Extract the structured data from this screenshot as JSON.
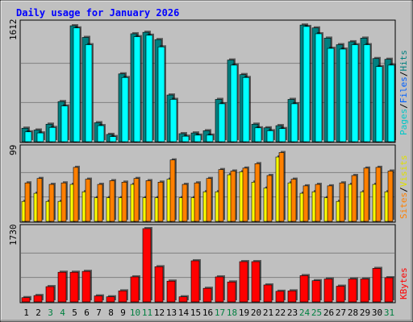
{
  "title": "Daily usage for January 2026",
  "colors": {
    "background": "#c0c0c0",
    "title": "#0000ff",
    "hits": "#00ffff",
    "hits_dark": "#008080",
    "files": "#0080ff",
    "files_dark": "#0060a0",
    "pages": "#00ffff",
    "visits": "#ffff00",
    "sites": "#ff8000",
    "kbytes": "#ff0000",
    "weekend_day": "#008040",
    "weekday_day": "#000000"
  },
  "chart_data": [
    {
      "type": "bar",
      "title": "Daily usage for January 2026",
      "panel": "top",
      "ymax_label": "1612",
      "ylim": [
        0,
        1612
      ],
      "grid": true,
      "legend_position": "right-vertical",
      "legend": [
        {
          "name": "Pages",
          "color": "#00ffff"
        },
        {
          "name": "Files",
          "color": "#0080ff"
        },
        {
          "name": "Hits",
          "color": "#008080"
        }
      ],
      "categories": [
        "1",
        "2",
        "3",
        "4",
        "5",
        "6",
        "7",
        "8",
        "9",
        "10",
        "11",
        "12",
        "13",
        "14",
        "15",
        "16",
        "17",
        "18",
        "19",
        "20",
        "21",
        "22",
        "23",
        "24",
        "25",
        "26",
        "27",
        "28",
        "29",
        "30",
        "31"
      ],
      "series": [
        {
          "name": "Hits",
          "values": [
            185,
            160,
            240,
            550,
            1590,
            1430,
            260,
            100,
            930,
            1480,
            1500,
            1400,
            640,
            110,
            120,
            150,
            580,
            1120,
            920,
            240,
            190,
            220,
            580,
            1600,
            1560,
            1420,
            1330,
            1370,
            1420,
            1140,
            1130
          ]
        },
        {
          "name": "Pages",
          "values": [
            135,
            120,
            195,
            490,
            1560,
            1330,
            220,
            70,
            880,
            1440,
            1460,
            1300,
            580,
            75,
            90,
            90,
            520,
            1050,
            880,
            190,
            150,
            180,
            520,
            1580,
            1480,
            1280,
            1270,
            1330,
            1330,
            1030,
            1050
          ]
        }
      ]
    },
    {
      "type": "bar",
      "panel": "middle",
      "ymax_label": "99",
      "ylim": [
        0,
        99
      ],
      "grid": true,
      "legend": [
        {
          "name": "Sites",
          "color": "#ff8000"
        },
        {
          "name": "Visits",
          "color": "#ffff00"
        }
      ],
      "categories": [
        "1",
        "2",
        "3",
        "4",
        "5",
        "6",
        "7",
        "8",
        "9",
        "10",
        "11",
        "12",
        "13",
        "14",
        "15",
        "16",
        "17",
        "18",
        "19",
        "20",
        "21",
        "22",
        "23",
        "24",
        "25",
        "26",
        "27",
        "28",
        "29",
        "30",
        "31"
      ],
      "series": [
        {
          "name": "Visits",
          "values": [
            27,
            38,
            27,
            27,
            50,
            40,
            32,
            32,
            32,
            50,
            32,
            32,
            57,
            32,
            32,
            40,
            40,
            63,
            67,
            53,
            45,
            87,
            52,
            38,
            40,
            32,
            27,
            50,
            40,
            50,
            40
          ]
        },
        {
          "name": "Sites",
          "values": [
            52,
            58,
            50,
            52,
            73,
            57,
            50,
            55,
            53,
            58,
            55,
            53,
            83,
            50,
            52,
            58,
            70,
            68,
            72,
            78,
            62,
            93,
            57,
            48,
            50,
            48,
            52,
            62,
            72,
            73,
            68
          ]
        }
      ]
    },
    {
      "type": "bar",
      "panel": "bottom",
      "ymax_label": "1730",
      "ylim": [
        0,
        1730
      ],
      "grid": true,
      "legend": [
        {
          "name": "KBytes",
          "color": "#ff0000"
        }
      ],
      "categories": [
        "1",
        "2",
        "3",
        "4",
        "5",
        "6",
        "7",
        "8",
        "9",
        "10",
        "11",
        "12",
        "13",
        "14",
        "15",
        "16",
        "17",
        "18",
        "19",
        "20",
        "21",
        "22",
        "23",
        "24",
        "25",
        "26",
        "27",
        "28",
        "29",
        "30",
        "31"
      ],
      "weekend_days": [
        "3",
        "4",
        "10",
        "11",
        "17",
        "18",
        "24",
        "25",
        "31"
      ],
      "series": [
        {
          "name": "KBytes",
          "values": [
            100,
            150,
            360,
            700,
            700,
            720,
            140,
            120,
            260,
            590,
            1730,
            830,
            490,
            120,
            970,
            320,
            590,
            470,
            950,
            950,
            400,
            250,
            260,
            620,
            500,
            540,
            370,
            540,
            540,
            790,
            570
          ]
        }
      ]
    }
  ]
}
